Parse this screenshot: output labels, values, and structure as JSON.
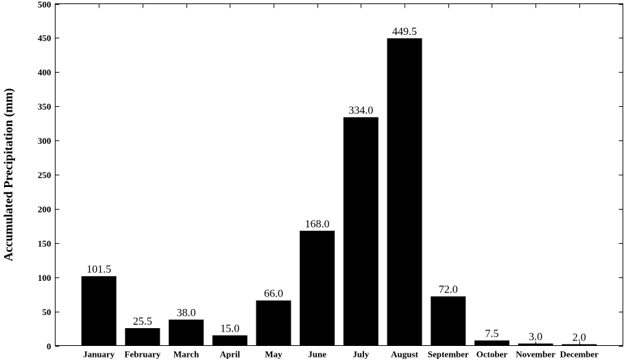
{
  "chart_data": {
    "type": "bar",
    "title": "",
    "xlabel": "",
    "ylabel": "Accumulated Precipitation (mm)",
    "ylim": [
      0,
      500
    ],
    "yticks": [
      0,
      50,
      100,
      150,
      200,
      250,
      300,
      350,
      400,
      450,
      500
    ],
    "categories": [
      "January",
      "February",
      "March",
      "April",
      "May",
      "June",
      "July",
      "August",
      "September",
      "October",
      "November",
      "December"
    ],
    "values": [
      101.5,
      25.5,
      38.0,
      15.0,
      66.0,
      168.0,
      334.0,
      449.5,
      72.0,
      7.5,
      3.0,
      2.0
    ],
    "value_labels": [
      "101.5",
      "25.5",
      "38.0",
      "15.0",
      "66.0",
      "168.0",
      "334.0",
      "449.5",
      "72.0",
      "7.5",
      "3.0",
      "2.0"
    ],
    "bar_color": "#000000",
    "grid": false
  }
}
